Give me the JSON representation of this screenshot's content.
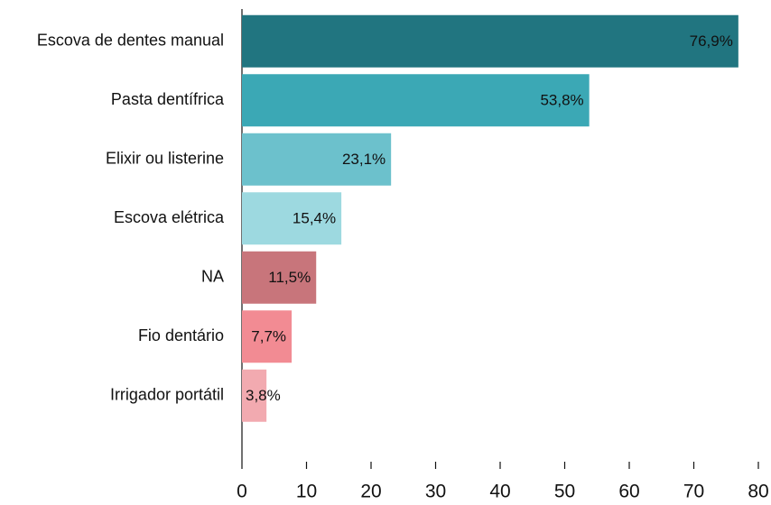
{
  "chart_data": {
    "type": "hbar",
    "categories": [
      "Escova de dentes manual",
      "Pasta dentífrica",
      "Elixir ou listerine",
      "Escova elétrica",
      "NA",
      "Fio dentário",
      "Irrigador portátil"
    ],
    "values": [
      76.9,
      53.8,
      23.1,
      15.4,
      11.5,
      7.7,
      3.8
    ],
    "value_labels": [
      "76,9%",
      "53,8%",
      "23,1%",
      "15,4%",
      "11,5%",
      "7,7%",
      "3,8%"
    ],
    "colors": [
      "#217580",
      "#3ba8b5",
      "#6cc1cc",
      "#9dd9e0",
      "#c8757b",
      "#f28b93",
      "#f2aab0"
    ],
    "xlim": [
      0,
      80
    ],
    "xticks": [
      0,
      10,
      20,
      30,
      40,
      50,
      60,
      70,
      80
    ]
  }
}
